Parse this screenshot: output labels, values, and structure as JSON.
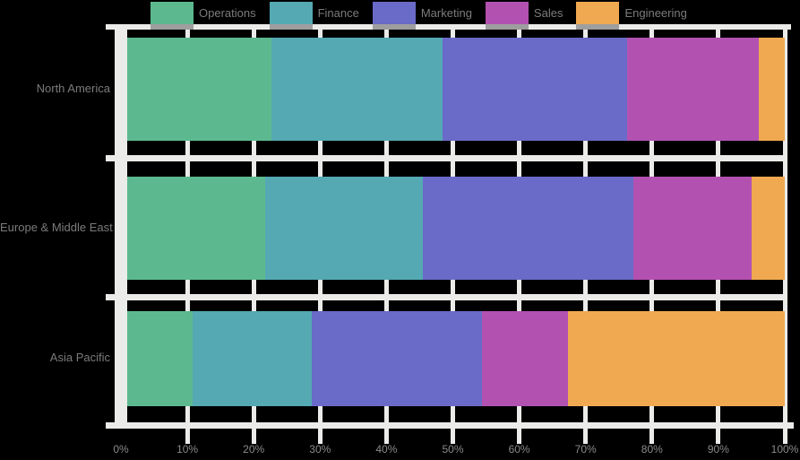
{
  "chart_data": {
    "type": "bar",
    "variant": "stacked-100",
    "orientation": "horizontal",
    "title": "",
    "xlabel": "",
    "ylabel": "",
    "xlim": [
      0,
      100
    ],
    "grid": true,
    "legend_position": "top",
    "categories": [
      "North America",
      "Europe & Middle East",
      "Asia Pacific"
    ],
    "series": [
      {
        "name": "Operations",
        "color": "#5CB98F",
        "values": [
          22,
          21,
          10
        ]
      },
      {
        "name": "Finance",
        "color": "#54A9B3",
        "values": [
          26,
          24,
          18
        ]
      },
      {
        "name": "Marketing",
        "color": "#6A6AC8",
        "values": [
          28,
          32,
          26
        ]
      },
      {
        "name": "Sales",
        "color": "#B351B1",
        "values": [
          20,
          18,
          13
        ]
      },
      {
        "name": "Engineering",
        "color": "#F0A951",
        "values": [
          4,
          5,
          33
        ]
      }
    ],
    "x_ticks": [
      "0%",
      "10%",
      "20%",
      "30%",
      "40%",
      "50%",
      "60%",
      "70%",
      "80%",
      "90%",
      "100%"
    ]
  },
  "colors": {
    "background": "#000000",
    "gridline": "#EBEBE9",
    "axis_line": "#EBEBE9",
    "tick_text": "#8A8A8A",
    "category_text": "#7B7B7B",
    "legend_text": "#7B7B7B",
    "swatch_shadow": "#9E9E9E"
  }
}
